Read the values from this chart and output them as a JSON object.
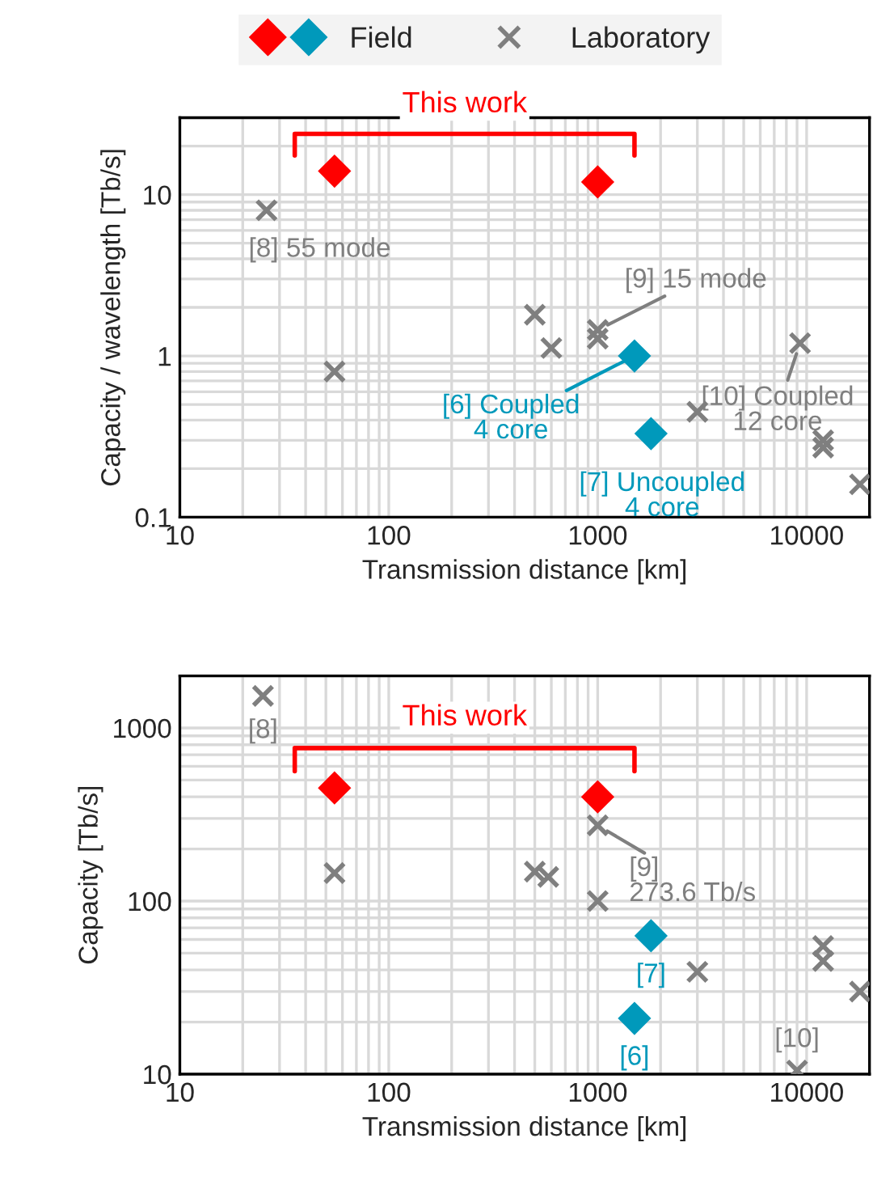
{
  "chart_data": [
    {
      "type": "scatter",
      "xlabel": "Transmission distance [km]",
      "ylabel": "Capacity / wavelength [Tb/s]",
      "log": "xy",
      "xlim": [
        10,
        20000
      ],
      "xticks": [
        10,
        100,
        1000,
        10000
      ],
      "ylim": [
        0.1,
        30
      ],
      "yticks": [
        0.1,
        1,
        10
      ],
      "grid": true,
      "legend": "top",
      "series": [
        {
          "name": "Field",
          "marker": "diamond",
          "colors": [
            "#ff0000",
            "#ff0000",
            "#0099bb",
            "#0099bb"
          ],
          "x": [
            55,
            1000,
            1500,
            1800
          ],
          "values": [
            14,
            12,
            1.0,
            0.33
          ]
        },
        {
          "name": "Laboratory",
          "marker": "cross",
          "color": "#7f7f7f",
          "x": [
            26,
            55,
            500,
            600,
            1000,
            1000,
            3000,
            9300,
            12000,
            12000,
            18000
          ],
          "values": [
            8,
            0.8,
            1.8,
            1.12,
            1.45,
            1.28,
            0.45,
            1.2,
            0.3,
            0.27,
            0.16
          ]
        }
      ],
      "annotations": [
        "This work",
        {
          "text": "[8] 55 mode",
          "x": 26,
          "y": 8
        },
        {
          "text": "[9] 15 mode",
          "x": 1000,
          "y": 1.45
        },
        {
          "text": "[6] Coupled\n4 core",
          "x": 1500,
          "y": 1.0
        },
        {
          "text": "[7] Uncoupled\n4 core",
          "x": 1800,
          "y": 0.33
        },
        {
          "text": "[10] Coupled\n12 core",
          "x": 9300,
          "y": 1.2
        }
      ]
    },
    {
      "type": "scatter",
      "xlabel": "Transmission distance [km]",
      "ylabel": "Capacity [Tb/s]",
      "log": "xy",
      "xlim": [
        10,
        20000
      ],
      "xticks": [
        10,
        100,
        1000,
        10000
      ],
      "ylim": [
        10,
        2000
      ],
      "yticks": [
        10,
        100,
        1000
      ],
      "grid": true,
      "series": [
        {
          "marker": "diamond",
          "colors": [
            "#ff0000",
            "#ff0000",
            "#0099bb",
            "#0099bb"
          ],
          "x": [
            55,
            1000,
            1500,
            1800
          ],
          "values": [
            450,
            400,
            21,
            63
          ]
        },
        {
          "marker": "cross",
          "color": "#7f7f7f",
          "x": [
            25,
            55,
            500,
            580,
            1000,
            1000,
            3000,
            9000,
            12000,
            12000,
            18000
          ],
          "values": [
            1530,
            145,
            148,
            138,
            273.6,
            100,
            39,
            10.5,
            55,
            45,
            30
          ]
        }
      ],
      "annotations": [
        "This work",
        {
          "text": "[8]",
          "x": 25,
          "y": 1530
        },
        {
          "text": "[9]\n273.6 Tb/s",
          "x": 1000,
          "y": 273.6
        },
        {
          "text": "[7]",
          "x": 1800,
          "y": 63
        },
        {
          "text": "[6]",
          "x": 1500,
          "y": 21
        },
        {
          "text": "[10]",
          "x": 9000,
          "y": 10.5
        }
      ]
    }
  ]
}
